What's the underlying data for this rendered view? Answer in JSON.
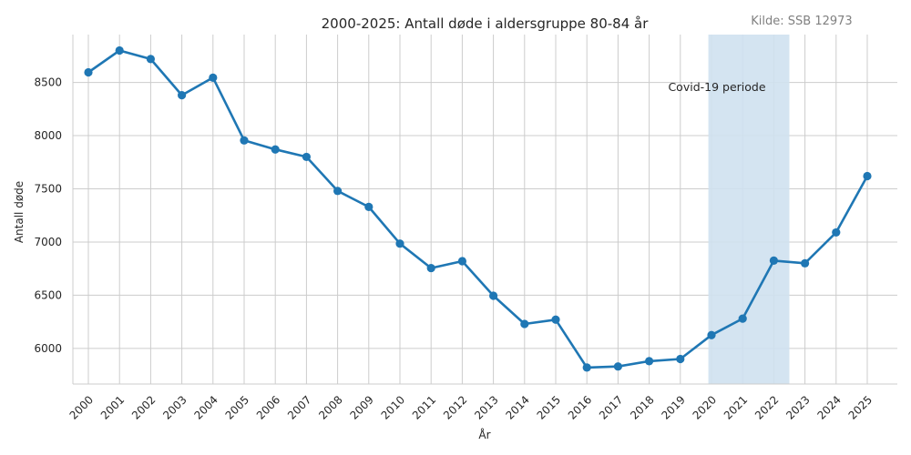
{
  "chart_data": {
    "type": "line",
    "title": "2000-2025: Antall døde i aldersgruppe 80-84 år",
    "source": "Kilde: SSB 12973",
    "xlabel": "År",
    "ylabel": "Antall døde",
    "x": [
      "2000",
      "2001",
      "2002",
      "2003",
      "2004",
      "2005",
      "2006",
      "2007",
      "2008",
      "2009",
      "2010",
      "2011",
      "2012",
      "2013",
      "2014",
      "2015",
      "2016",
      "2017",
      "2018",
      "2019",
      "2020",
      "2021",
      "2022",
      "2023",
      "2024",
      "2025"
    ],
    "series": [
      {
        "values": [
          8595,
          8800,
          8720,
          8380,
          8545,
          7955,
          7870,
          7800,
          7480,
          7330,
          6985,
          6755,
          6820,
          6495,
          6230,
          6270,
          5820,
          5830,
          5880,
          5900,
          6125,
          6280,
          6825,
          6800,
          7090,
          7620
        ]
      }
    ],
    "yticks": [
      6000,
      6500,
      7000,
      7500,
      8000,
      8500
    ],
    "ylim": [
      5665,
      8950
    ],
    "grid": true,
    "line_color": "#1f77b4",
    "shade_color": "#cfe1f0",
    "annotation": {
      "text": "Covid-19 periode",
      "x_start": 2020,
      "x_end": 2022
    }
  }
}
